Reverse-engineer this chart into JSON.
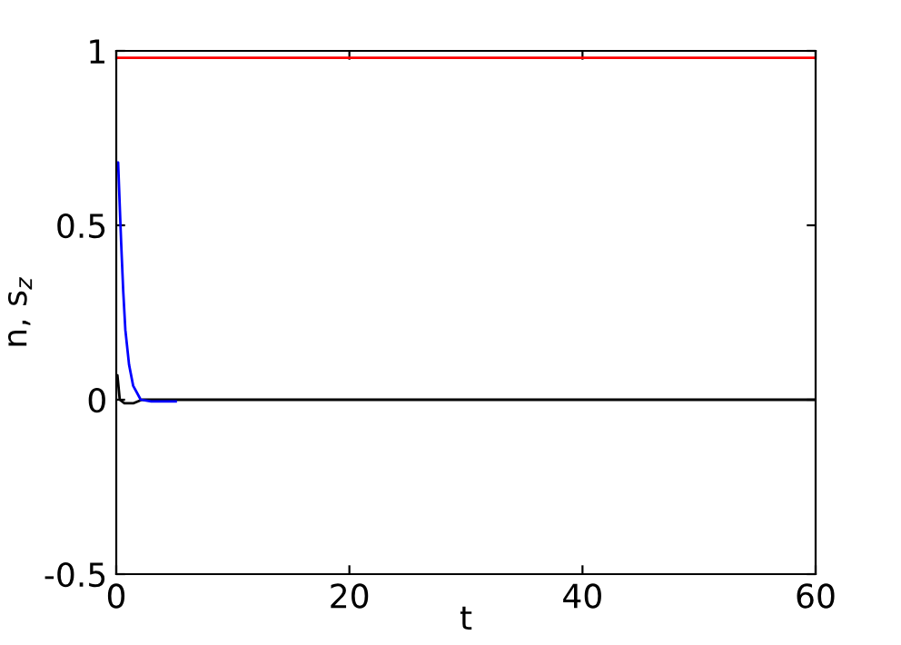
{
  "chart_data": {
    "type": "line",
    "xlabel": "t",
    "ylabel": "n, s$_{z}$",
    "xlim": [
      0,
      60
    ],
    "ylim": [
      -0.5,
      1
    ],
    "xticks": [
      0,
      20,
      40,
      60
    ],
    "yticks": [
      -0.5,
      0,
      0.5,
      1
    ],
    "grid": false,
    "legend": false,
    "series": [
      {
        "color": "#ff0000",
        "x": [
          0,
          60
        ],
        "values": [
          0.98,
          0.98
        ]
      },
      {
        "color": "#000000",
        "x": [
          0,
          0.1,
          0.3,
          0.7,
          1.5,
          2.2,
          10,
          60
        ],
        "values": [
          0.07,
          0.07,
          0,
          -0.01,
          -0.01,
          0,
          0,
          0
        ]
      },
      {
        "color": "#0000ff",
        "x": [
          0,
          0.16,
          0.42,
          0.6,
          0.78,
          1.1,
          1.45,
          2.1,
          3,
          5.1
        ],
        "values": [
          0.68,
          0.68,
          0.45,
          0.31,
          0.2,
          0.1,
          0.04,
          0,
          -0.005,
          -0.005
        ]
      }
    ]
  }
}
